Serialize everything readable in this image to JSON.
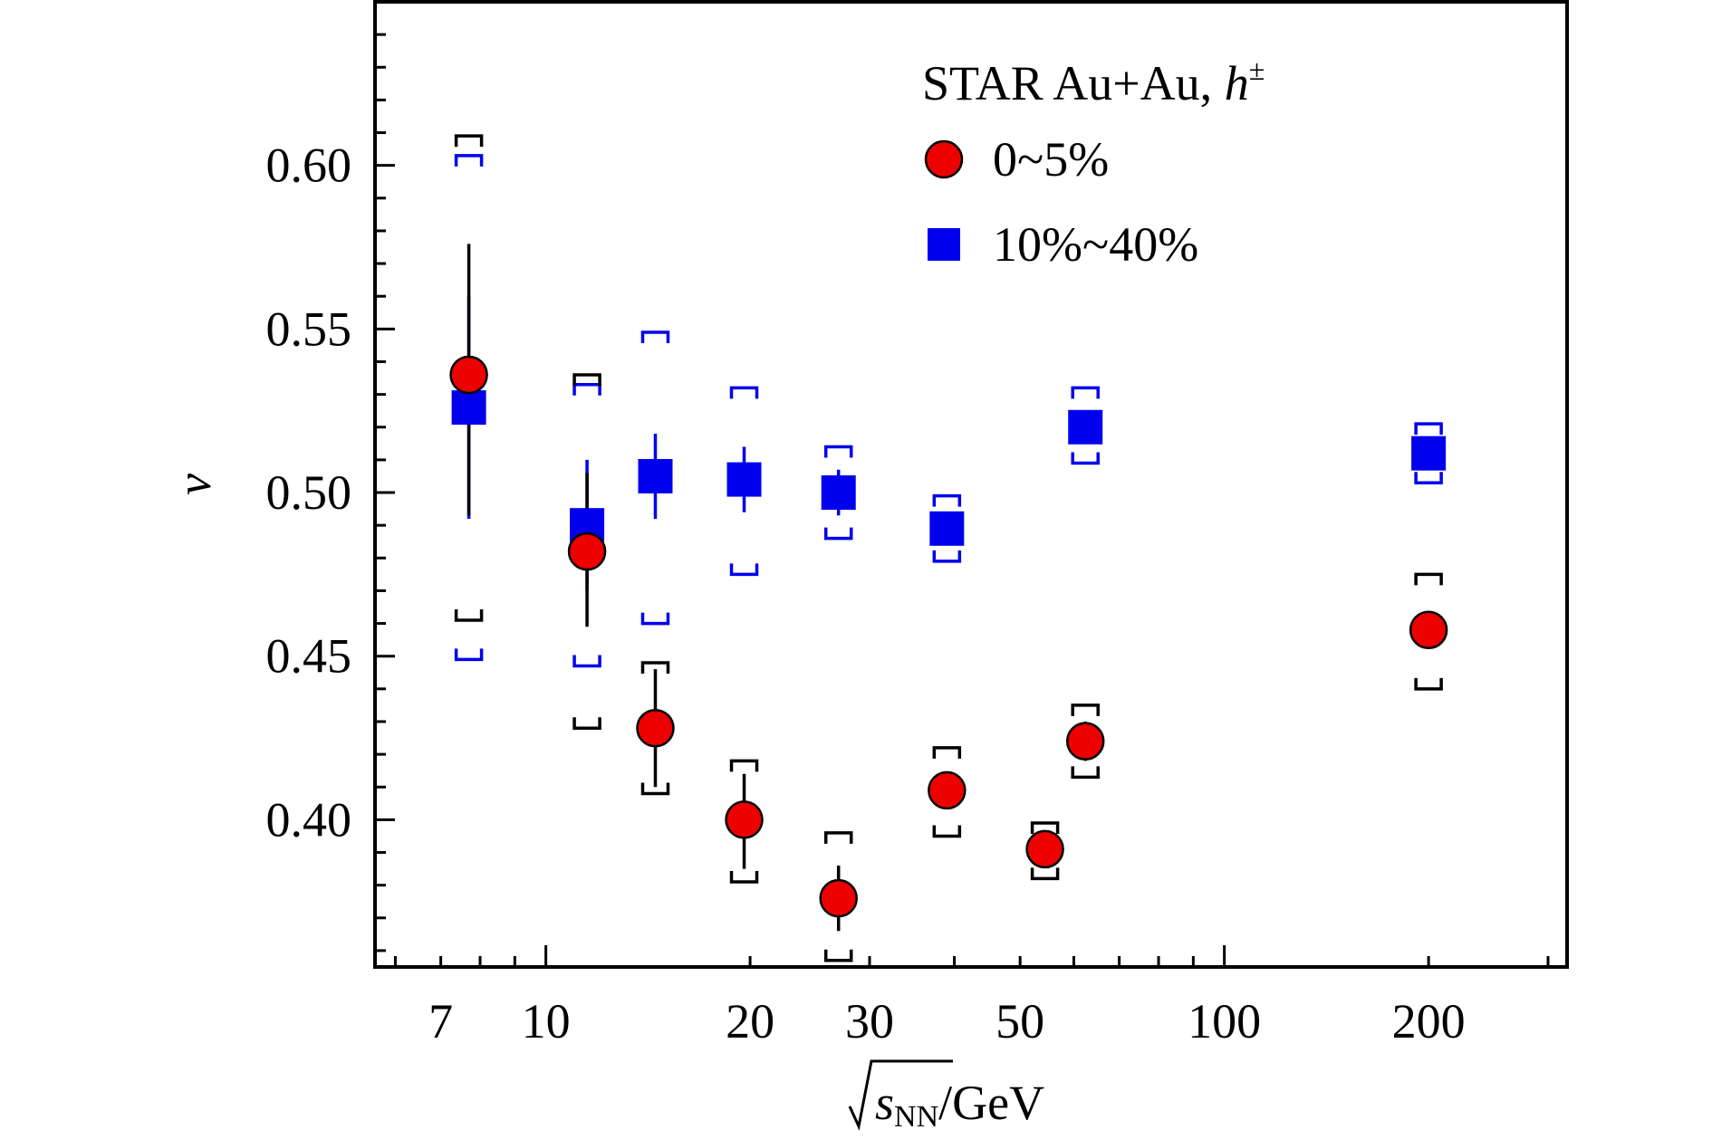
{
  "chart_data": {
    "type": "scatter",
    "title": "",
    "legend_title": "STAR Au+Au, ",
    "legend_title_particle": "h",
    "legend_title_charge": "±",
    "legend_position": "top-right",
    "xlabel_prefix": "s",
    "xlabel_sub": "NN",
    "xlabel_suffix": "/GeV",
    "ylabel": "ν",
    "x_scale": "log",
    "xlim": [
      5.6,
      320
    ],
    "ylim": [
      0.355,
      0.65
    ],
    "x_tick_values": [
      7,
      10,
      20,
      30,
      50,
      100,
      200
    ],
    "x_tick_labels": [
      "7",
      "10",
      "20",
      "30",
      "50",
      "100",
      "200"
    ],
    "y_tick_values": [
      0.4,
      0.45,
      0.5,
      0.55,
      0.6
    ],
    "y_tick_labels": [
      "0.40",
      "0.45",
      "0.50",
      "0.55",
      "0.60"
    ],
    "grid": false,
    "series": [
      {
        "name": "0~5%",
        "marker": "circle",
        "color": "#ee0000",
        "edge_color": "#000000",
        "error_color": "#000000",
        "points": [
          {
            "x": 7.7,
            "y": 0.536,
            "stat": [
              0.493,
              0.576
            ],
            "sys": [
              0.461,
              0.609
            ]
          },
          {
            "x": 11.5,
            "y": 0.482,
            "stat": [
              0.459,
              0.506
            ],
            "sys": [
              0.428,
              0.536
            ]
          },
          {
            "x": 14.5,
            "y": 0.428,
            "stat": [
              0.41,
              0.446
            ],
            "sys": [
              0.408,
              0.448
            ]
          },
          {
            "x": 19.6,
            "y": 0.4,
            "stat": [
              0.385,
              0.414
            ],
            "sys": [
              0.381,
              0.418
            ]
          },
          {
            "x": 27,
            "y": 0.376,
            "stat": [
              0.366,
              0.386
            ],
            "sys": [
              0.357,
              0.396
            ]
          },
          {
            "x": 39,
            "y": 0.409,
            "stat": [
              0.405,
              0.413
            ],
            "sys": [
              0.395,
              0.422
            ]
          },
          {
            "x": 54.4,
            "y": 0.391,
            "stat": [
              0.388,
              0.394
            ],
            "sys": [
              0.382,
              0.399
            ]
          },
          {
            "x": 62.4,
            "y": 0.424,
            "stat": [
              0.418,
              0.43
            ],
            "sys": [
              0.413,
              0.435
            ]
          },
          {
            "x": 200,
            "y": 0.458,
            "stat": [
              0.456,
              0.46
            ],
            "sys": [
              0.44,
              0.475
            ]
          }
        ]
      },
      {
        "name": "10%~40%",
        "marker": "square",
        "color": "#0000ee",
        "edge_color": "#0000ee",
        "error_color": "#0000ee",
        "points": [
          {
            "x": 7.7,
            "y": 0.526,
            "stat": [
              0.492,
              0.56
            ],
            "sys": [
              0.449,
              0.603
            ]
          },
          {
            "x": 11.5,
            "y": 0.49,
            "stat": [
              0.47,
              0.51
            ],
            "sys": [
              0.447,
              0.533
            ]
          },
          {
            "x": 14.5,
            "y": 0.505,
            "stat": [
              0.492,
              0.518
            ],
            "sys": [
              0.46,
              0.549
            ]
          },
          {
            "x": 19.6,
            "y": 0.504,
            "stat": [
              0.494,
              0.514
            ],
            "sys": [
              0.475,
              0.532
            ]
          },
          {
            "x": 27,
            "y": 0.5,
            "stat": [
              0.493,
              0.507
            ],
            "sys": [
              0.486,
              0.514
            ]
          },
          {
            "x": 39,
            "y": 0.489,
            "stat": [
              0.484,
              0.494
            ],
            "sys": [
              0.479,
              0.499
            ]
          },
          {
            "x": 62.4,
            "y": 0.52,
            "stat": [
              0.515,
              0.525
            ],
            "sys": [
              0.509,
              0.532
            ]
          },
          {
            "x": 200,
            "y": 0.512,
            "stat": [
              0.509,
              0.515
            ],
            "sys": [
              0.503,
              0.521
            ]
          }
        ]
      }
    ]
  }
}
